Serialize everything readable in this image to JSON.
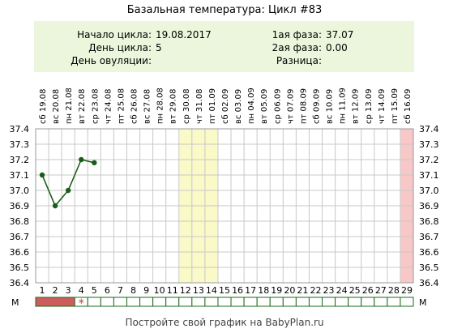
{
  "title": "Базальная температура: Цикл #83",
  "info": {
    "cycle_start_label": "Начало цикла:",
    "cycle_start_value": "19.08.2017",
    "cycle_day_label": "День цикла:",
    "cycle_day_value": "5",
    "ovulation_day_label": "День овуляции:",
    "ovulation_day_value": "",
    "phase1_label": "1ая фаза:",
    "phase1_value": "37.07",
    "phase2_label": "2ая фаза:",
    "phase2_value": "0.00",
    "diff_label": "Разница:",
    "diff_value": ""
  },
  "footer": "Постройте свой график на BabyPlan.ru",
  "colors": {
    "line": "#1a5c1a",
    "highlight_yellow": "#fafac8",
    "highlight_pink": "#f8c8c8",
    "menstruation": "#cd5c5c",
    "star": "#cc3333",
    "grid": "#c8c8c8",
    "info_bg": "#ecf6dc"
  },
  "chart_data": {
    "type": "line",
    "dates": [
      "сб 19.08",
      "вс 20.08",
      "пн 21.08",
      "вт 22.08",
      "ср 23.08",
      "чт 24.08",
      "пт 25.08",
      "сб 26.08",
      "вс 27.08",
      "пн 28.08",
      "вт 29.08",
      "ср 30.08",
      "чт 31.08",
      "пт 01.09",
      "сб 02.09",
      "вс 03.09",
      "пн 04.09",
      "вт 05.09",
      "ср 06.09",
      "чт 07.09",
      "пт 08.09",
      "сб 09.09",
      "вс 10.09",
      "пн 11.09",
      "вт 12.09",
      "ср 13.09",
      "чт 14.09",
      "пт 15.09",
      "сб 16.09"
    ],
    "days": [
      1,
      2,
      3,
      4,
      5,
      6,
      7,
      8,
      9,
      10,
      11,
      12,
      13,
      14,
      15,
      16,
      17,
      18,
      19,
      20,
      21,
      22,
      23,
      24,
      25,
      26,
      27,
      28,
      29
    ],
    "temperatures": [
      37.1,
      36.9,
      37.0,
      37.2,
      37.18
    ],
    "y_ticks": [
      "37.4",
      "37.3",
      "37.2",
      "37.1",
      "37.0",
      "36.9",
      "36.8",
      "36.7",
      "36.6",
      "36.5",
      "36.4"
    ],
    "ylim": [
      36.4,
      37.4
    ],
    "highlight_days_yellow": [
      12,
      13,
      14
    ],
    "highlight_days_pink": [
      29
    ],
    "menstruation_days": [
      1,
      2,
      3
    ],
    "star_day": 4,
    "m_label": "М"
  }
}
